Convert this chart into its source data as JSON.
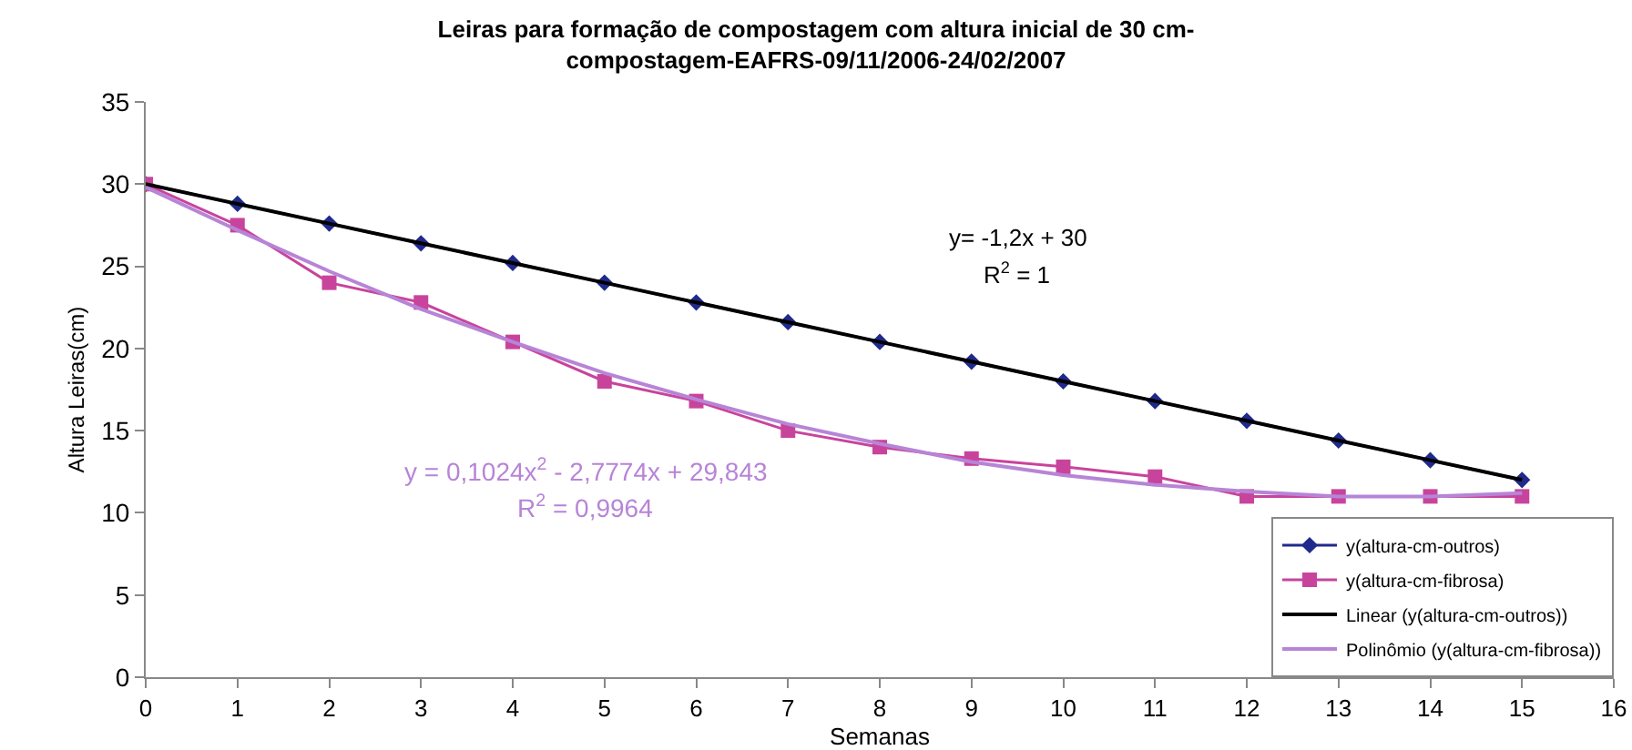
{
  "chart_data": {
    "type": "line",
    "title": "Leiras para formação de compostagem com altura inicial de 30 cm-\ncompostagem-EAFRS-09/11/2006-24/02/2007",
    "xlabel": "Semanas",
    "ylabel": "Altura Leiras(cm)",
    "x": [
      0,
      1,
      2,
      3,
      4,
      5,
      6,
      7,
      8,
      9,
      10,
      11,
      12,
      13,
      14,
      15
    ],
    "series": [
      {
        "name": "y(altura-cm-outros)",
        "color": "#1f2a8c",
        "marker": "diamond",
        "values": [
          30,
          28.8,
          27.6,
          26.4,
          25.2,
          24,
          22.8,
          21.6,
          20.4,
          19.2,
          18,
          16.8,
          15.6,
          14.4,
          13.2,
          12
        ]
      },
      {
        "name": "y(altura-cm-fibrosa)",
        "color": "#c8449c",
        "marker": "square",
        "values": [
          30,
          27.5,
          24,
          22.8,
          20.4,
          18,
          16.8,
          15,
          14,
          13.3,
          12.8,
          12.2,
          11,
          11,
          11,
          11
        ]
      },
      {
        "name": "Linear (y(altura-cm-outros))",
        "color": "#000000",
        "marker": "none",
        "values": [
          30,
          28.8,
          27.6,
          26.4,
          25.2,
          24,
          22.8,
          21.6,
          20.4,
          19.2,
          18,
          16.8,
          15.6,
          14.4,
          13.2,
          12
        ]
      },
      {
        "name": "Polinômio (y(altura-cm-fibrosa))",
        "color": "#b784d6",
        "marker": "none",
        "values": [
          29.8,
          27.2,
          24.7,
          22.4,
          20.4,
          18.5,
          16.9,
          15.4,
          14.2,
          13.1,
          12.3,
          11.7,
          11.3,
          11,
          11,
          11.2
        ]
      }
    ],
    "xlim": [
      0,
      16
    ],
    "xticks": [
      0,
      1,
      2,
      3,
      4,
      5,
      6,
      7,
      8,
      9,
      10,
      11,
      12,
      13,
      14,
      15,
      16
    ],
    "ylim": [
      0,
      35
    ],
    "yticks": [
      0,
      5,
      10,
      15,
      20,
      25,
      30,
      35
    ],
    "annotations": [
      "y= -1,2x + 30",
      "R$^{2}$ = 1",
      "y = 0,1024x$^{2}$ - 2,7774x + 29,843",
      "R$^{2}$ = 0,9964"
    ],
    "legend": "bottom right",
    "grid": false,
    "line_style": "solid"
  }
}
